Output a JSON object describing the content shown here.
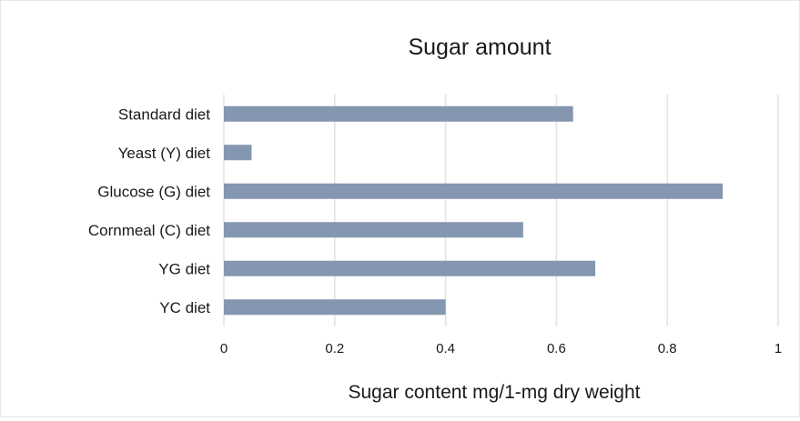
{
  "chart_data": {
    "type": "bar",
    "orientation": "horizontal",
    "title": "Sugar amount",
    "xlabel": "Sugar content mg/1-mg dry weight",
    "ylabel": "",
    "categories": [
      "Standard diet",
      "Yeast (Y) diet",
      "Glucose (G) diet",
      "Cornmeal (C) diet",
      "YG diet",
      "YC diet"
    ],
    "values": [
      0.63,
      0.05,
      0.9,
      0.54,
      0.67,
      0.4
    ],
    "xlim": [
      0,
      1
    ],
    "ticks": [
      "0",
      "0.2",
      "0.4",
      "0.6",
      "0.8",
      "1"
    ],
    "tick_values": [
      0,
      0.2,
      0.4,
      0.6,
      0.8,
      1
    ],
    "grid": true,
    "legend": "none",
    "bar_color": "#8496b0"
  }
}
